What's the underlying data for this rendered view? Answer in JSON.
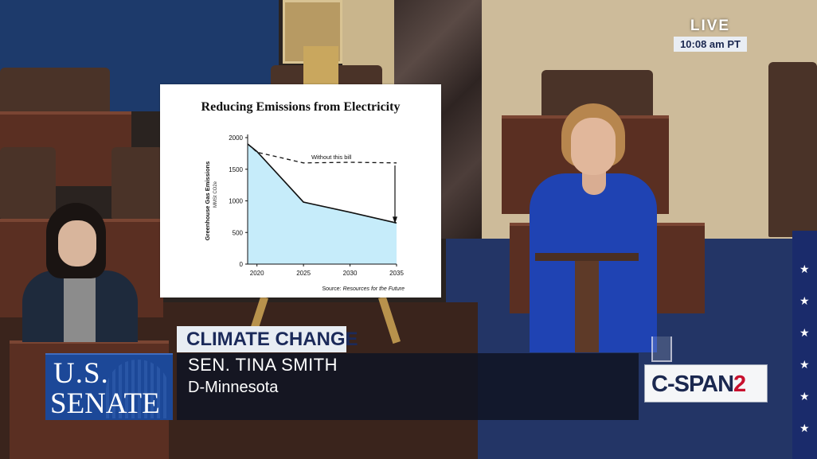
{
  "live": {
    "label": "LIVE",
    "time": "10:08 am PT"
  },
  "network": {
    "name": "C-SPAN",
    "channel": "2"
  },
  "senate_logo": {
    "line1": "U.S.",
    "line2": "SENATE"
  },
  "lower_third": {
    "topic": "CLIMATE CHANGE",
    "name": "SEN. TINA SMITH",
    "party": "D-Minnesota"
  },
  "chart_data": {
    "type": "area",
    "title": "Reducing Emissions from Electricity",
    "ylabel": "Greenhouse Gas Emissions",
    "yunit": "MMSt CO2e",
    "xlim": [
      2019,
      2035
    ],
    "ylim": [
      0,
      2000
    ],
    "xticks": [
      2020,
      2025,
      2030,
      2035
    ],
    "yticks": [
      0,
      500,
      1000,
      1500,
      2000
    ],
    "series": [
      {
        "name": "",
        "style": "area",
        "color": "#c6ecfa",
        "x": [
          2019,
          2020,
          2025,
          2030,
          2035
        ],
        "y": [
          1900,
          1780,
          980,
          820,
          650
        ]
      },
      {
        "name": "Without this bill",
        "style": "dashed",
        "x": [
          2019,
          2020,
          2025,
          2030,
          2035
        ],
        "y": [
          1900,
          1770,
          1600,
          1610,
          1600
        ]
      }
    ],
    "annotation": "Without this bill",
    "source_prefix": "Source:",
    "source_name": "Resources for the Future"
  }
}
